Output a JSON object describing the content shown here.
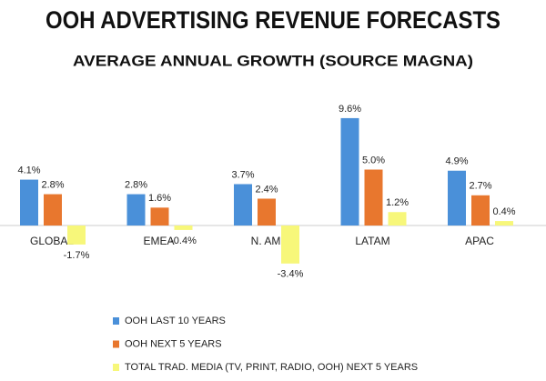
{
  "chart_data": {
    "type": "bar",
    "title": "OOH ADVERTISING REVENUE FORECASTS",
    "subtitle": "AVERAGE ANNUAL GROWTH (SOURCE MAGNA)",
    "categories": [
      "GLOBAL",
      "EMEA",
      "N. AM",
      "LATAM",
      "APAC"
    ],
    "series": [
      {
        "name": "OOH LAST 10 YEARS",
        "color": "#4a90d9",
        "values": [
          4.1,
          2.8,
          3.7,
          9.6,
          4.9
        ],
        "value_labels": [
          "4.1%",
          "2.8%",
          "3.7%",
          "9.6%",
          "4.9%"
        ]
      },
      {
        "name": "OOH NEXT 5 YEARS",
        "color": "#e8772e",
        "values": [
          2.8,
          1.6,
          2.4,
          5.0,
          2.7
        ],
        "value_labels": [
          "2.8%",
          "1.6%",
          "2.4%",
          "5.0%",
          "2.7%"
        ]
      },
      {
        "name": "TOTAL TRAD. MEDIA (TV, PRINT, RADIO, OOH) NEXT 5 YEARS",
        "color": "#f7f77a",
        "values": [
          -1.7,
          -0.4,
          -3.4,
          1.2,
          0.4
        ],
        "value_labels": [
          "-1.7%",
          "-0.4%",
          "-3.4%",
          "1.2%",
          "0.4%"
        ]
      }
    ]
  }
}
